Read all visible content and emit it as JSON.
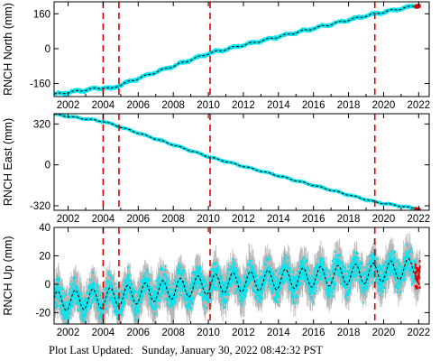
{
  "chart_data": [
    {
      "type": "scatter",
      "ylabel": "RNCH North (mm)",
      "yticks": [
        -160,
        0,
        160
      ],
      "ylim": [
        -220,
        215
      ],
      "xlim": [
        2001.2,
        2022.6
      ],
      "xticks": [
        2002,
        2004,
        2006,
        2008,
        2010,
        2012,
        2014,
        2016,
        2018,
        2020,
        2022
      ],
      "event_lines": [
        2004.0,
        2004.9,
        2010.1,
        2019.5
      ],
      "series_points": [
        [
          2001.2,
          -210
        ],
        [
          2004.0,
          -178
        ],
        [
          2004.45,
          -185
        ],
        [
          2004.9,
          -168
        ],
        [
          2010.1,
          -20
        ],
        [
          2019.5,
          160
        ],
        [
          2022.0,
          200
        ]
      ],
      "seasonal_amplitude": 4,
      "scatter_spread": 3,
      "recent_points": {
        "from": 2021.8,
        "to": 2022.08,
        "color": "#e00000"
      }
    },
    {
      "type": "scatter",
      "ylabel": "RNCH East (mm)",
      "yticks": [
        -320,
        0,
        320
      ],
      "ylim": [
        -355,
        400
      ],
      "xlim": [
        2001.2,
        2022.6
      ],
      "xticks": [
        2002,
        2004,
        2006,
        2008,
        2010,
        2012,
        2014,
        2016,
        2018,
        2020,
        2022
      ],
      "event_lines": [
        2004.0,
        2004.9,
        2010.1,
        2019.5
      ],
      "series_points": [
        [
          2001.2,
          395
        ],
        [
          2004.0,
          340
        ],
        [
          2004.9,
          300
        ],
        [
          2010.1,
          60
        ],
        [
          2019.5,
          -290
        ],
        [
          2022.0,
          -345
        ]
      ],
      "seasonal_amplitude": 4,
      "scatter_spread": 3,
      "recent_points": {
        "from": 2021.8,
        "to": 2022.08,
        "color": "#e00000"
      }
    },
    {
      "type": "scatter",
      "ylabel": "RNCH Up (mm)",
      "yticks": [
        -20,
        0,
        20,
        40
      ],
      "ylim": [
        -28,
        40
      ],
      "xlim": [
        2001.2,
        2022.6
      ],
      "xticks": [
        2002,
        2004,
        2006,
        2008,
        2010,
        2012,
        2014,
        2016,
        2018,
        2020,
        2022
      ],
      "event_lines": [
        2004.0,
        2004.9,
        2010.1,
        2019.5
      ],
      "series_points": [
        [
          2001.2,
          -12
        ],
        [
          2004.0,
          -10
        ],
        [
          2010.1,
          0
        ],
        [
          2016.0,
          5
        ],
        [
          2019.5,
          8
        ],
        [
          2022.0,
          12
        ]
      ],
      "seasonal_amplitude": 7,
      "scatter_spread": 5,
      "errorbar_spread": 12,
      "recent_points": {
        "from": 2021.8,
        "to": 2022.08,
        "color": "#e00000"
      }
    }
  ],
  "colors": {
    "points": "#00e5ee",
    "errorbars": "#a9a9a9",
    "trend": "#000000",
    "event_lines": "#e00000",
    "recent": "#e00000"
  },
  "footer": {
    "label": "Plot Last Updated:",
    "value": "Sunday, January 30, 2022 08:42:32 PST"
  }
}
